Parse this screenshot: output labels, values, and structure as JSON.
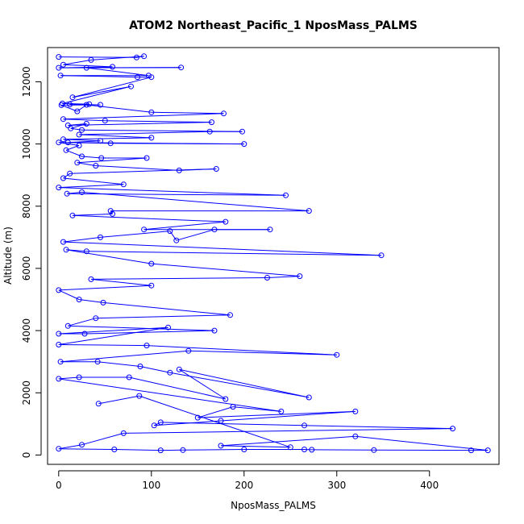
{
  "chart_data": {
    "type": "line",
    "title": "ATOM2 Northeast_Pacific_1 NposMass_PALMS",
    "xlabel": "NposMass_PALMS",
    "ylabel": "Altitude (m)",
    "xlim": [
      -12,
      475
    ],
    "ylim": [
      -300,
      13100
    ],
    "xticks": [
      0,
      100,
      200,
      300,
      400
    ],
    "yticks": [
      0,
      2000,
      4000,
      6000,
      8000,
      10000,
      12000
    ],
    "grid": false,
    "series_color": "#0000ff",
    "series": [
      {
        "name": "",
        "marker": "open-circle",
        "points": [
          [
            0,
            12800
          ],
          [
            84,
            12780
          ],
          [
            92,
            12820
          ],
          [
            35,
            12700
          ],
          [
            5,
            12550
          ],
          [
            58,
            12480
          ],
          [
            0,
            12450
          ],
          [
            132,
            12460
          ],
          [
            30,
            12450
          ],
          [
            97,
            12200
          ],
          [
            2,
            12200
          ],
          [
            85,
            12150
          ],
          [
            100,
            12150
          ],
          [
            15,
            11500
          ],
          [
            78,
            11850
          ],
          [
            4,
            11300
          ],
          [
            33,
            11280
          ],
          [
            12,
            11270
          ],
          [
            45,
            11260
          ],
          [
            3,
            11250
          ],
          [
            20,
            11050
          ],
          [
            30,
            11260
          ],
          [
            100,
            11020
          ],
          [
            178,
            10980
          ],
          [
            5,
            10800
          ],
          [
            50,
            10750
          ],
          [
            165,
            10700
          ],
          [
            10,
            10600
          ],
          [
            30,
            10650
          ],
          [
            13,
            10500
          ],
          [
            25,
            10450
          ],
          [
            198,
            10400
          ],
          [
            163,
            10400
          ],
          [
            22,
            10300
          ],
          [
            100,
            10200
          ],
          [
            5,
            10150
          ],
          [
            45,
            10100
          ],
          [
            10,
            10050
          ],
          [
            56,
            10020
          ],
          [
            200,
            10000
          ],
          [
            0,
            10050
          ],
          [
            22,
            9950
          ],
          [
            8,
            9800
          ],
          [
            25,
            9600
          ],
          [
            46,
            9550
          ],
          [
            95,
            9550
          ],
          [
            20,
            9400
          ],
          [
            40,
            9300
          ],
          [
            130,
            9150
          ],
          [
            170,
            9200
          ],
          [
            12,
            9050
          ],
          [
            5,
            8900
          ],
          [
            70,
            8700
          ],
          [
            0,
            8600
          ],
          [
            245,
            8350
          ],
          [
            9,
            8400
          ],
          [
            25,
            8450
          ],
          [
            270,
            7850
          ],
          [
            56,
            7850
          ],
          [
            58,
            7750
          ],
          [
            15,
            7700
          ],
          [
            180,
            7500
          ],
          [
            92,
            7250
          ],
          [
            228,
            7250
          ],
          [
            168,
            7250
          ],
          [
            127,
            6900
          ],
          [
            120,
            7200
          ],
          [
            45,
            7000
          ],
          [
            5,
            6850
          ],
          [
            348,
            6420
          ],
          [
            30,
            6550
          ],
          [
            8,
            6600
          ],
          [
            100,
            6150
          ],
          [
            260,
            5750
          ],
          [
            225,
            5700
          ],
          [
            35,
            5650
          ],
          [
            100,
            5450
          ],
          [
            0,
            5300
          ],
          [
            22,
            5000
          ],
          [
            48,
            4900
          ],
          [
            185,
            4500
          ],
          [
            40,
            4400
          ],
          [
            10,
            4150
          ],
          [
            168,
            4000
          ],
          [
            28,
            3900
          ],
          [
            0,
            3900
          ],
          [
            118,
            4100
          ],
          [
            0,
            3550
          ],
          [
            95,
            3520
          ],
          [
            300,
            3220
          ],
          [
            140,
            3350
          ],
          [
            2,
            3000
          ],
          [
            42,
            3000
          ],
          [
            88,
            2850
          ],
          [
            120,
            2650
          ],
          [
            270,
            1850
          ],
          [
            130,
            2750
          ],
          [
            180,
            1800
          ],
          [
            76,
            2500
          ],
          [
            22,
            2500
          ],
          [
            0,
            2450
          ],
          [
            240,
            1400
          ],
          [
            188,
            1550
          ],
          [
            150,
            1200
          ],
          [
            320,
            1400
          ],
          [
            175,
            1100
          ],
          [
            103,
            950
          ],
          [
            110,
            1050
          ],
          [
            265,
            950
          ],
          [
            425,
            850
          ],
          [
            70,
            700
          ],
          [
            25,
            330
          ],
          [
            0,
            200
          ],
          [
            60,
            180
          ],
          [
            110,
            150
          ],
          [
            134,
            160
          ],
          [
            200,
            180
          ],
          [
            265,
            180
          ],
          [
            273,
            170
          ],
          [
            340,
            160
          ],
          [
            445,
            150
          ],
          [
            463,
            150
          ],
          [
            320,
            600
          ],
          [
            175,
            300
          ],
          [
            250,
            250
          ],
          [
            87,
            1900
          ],
          [
            43,
            1650
          ]
        ]
      }
    ]
  }
}
